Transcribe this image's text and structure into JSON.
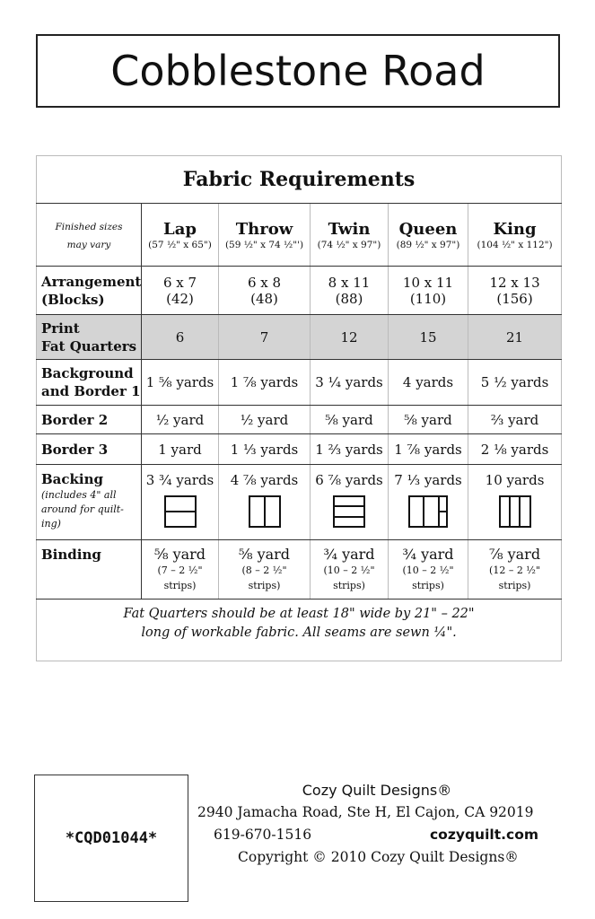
{
  "title": "Cobblestone Road",
  "table": {
    "heading": "Fabric Requirements",
    "corner_note": [
      "Finished sizes",
      "may vary"
    ],
    "sizes": [
      {
        "name": "Lap",
        "dims": "(57 ½\" x 65\")"
      },
      {
        "name": "Throw",
        "dims": "(59 ½\" x 74 ½\"')"
      },
      {
        "name": "Twin",
        "dims": "(74 ½\" x 97\")"
      },
      {
        "name": "Queen",
        "dims": "(89 ½\" x 97\")"
      },
      {
        "name": "King",
        "dims": "(104 ½\" x 112\")"
      }
    ],
    "arrangement": {
      "label": [
        "Arrangement",
        "(Blocks)"
      ],
      "values": [
        [
          "6 x 7",
          "(42)"
        ],
        [
          "6 x 8",
          "(48)"
        ],
        [
          "8 x 11",
          "(88)"
        ],
        [
          "10 x 11",
          "(110)"
        ],
        [
          "12 x 13",
          "(156)"
        ]
      ]
    },
    "print": {
      "label": [
        "Print",
        "Fat Quarters"
      ],
      "values": [
        "6",
        "7",
        "12",
        "15",
        "21"
      ],
      "highlight_color": "#d4d4d4"
    },
    "background": {
      "label": [
        "Background",
        "and Border 1"
      ],
      "values": [
        "1 ⅝ yards",
        "1 ⅞ yards",
        "3 ¼ yards",
        "4 yards",
        "5 ½ yards"
      ]
    },
    "border2": {
      "label": "Border 2",
      "values": [
        "½ yard",
        "½ yard",
        "⅝ yard",
        "⅝ yard",
        "⅔ yard"
      ]
    },
    "border3": {
      "label": "Border 3",
      "values": [
        "1 yard",
        "1 ⅓ yards",
        "1 ⅔ yards",
        "1 ⅞ yards",
        "2 ⅛ yards"
      ]
    },
    "backing": {
      "label": "Backing",
      "sublabel": "(includes 4\" all around for quilt-ing)",
      "values": [
        "3 ¾ yards",
        "4 ⅞ yards",
        "6 ⅞ yards",
        "7 ⅓ yards",
        "10 yards"
      ],
      "diagrams": [
        "2-horizontal-panels",
        "2-vertical-panels",
        "3-horizontal-panels",
        "2-vertical-plus-split-panel",
        "3-vertical-panels"
      ]
    },
    "binding": {
      "label": "Binding",
      "values": [
        [
          "⅝ yard",
          "(7 – 2 ½\"",
          "strips)"
        ],
        [
          "⅝ yard",
          "(8 – 2 ½\"",
          "strips)"
        ],
        [
          "¾ yard",
          "(10 – 2 ½\"",
          "strips)"
        ],
        [
          "¾ yard",
          "(10 – 2 ½\"",
          "strips)"
        ],
        [
          "⅞ yard",
          "(12 – 2 ½\"",
          "strips)"
        ]
      ]
    },
    "note": [
      "Fat Quarters should be at least 18\" wide by 21\" – 22\"",
      "long of workable fabric. All seams are sewn ¼\"."
    ]
  },
  "footer": {
    "sku": "*CQD01044*",
    "company": "Cozy Quilt Designs®",
    "address": "2940 Jamacha Road, Ste H, El Cajon, CA 92019",
    "phone": "619-670-1516",
    "website": "cozyquilt.com",
    "copyright": "Copyright © 2010 Cozy Quilt Designs®"
  }
}
